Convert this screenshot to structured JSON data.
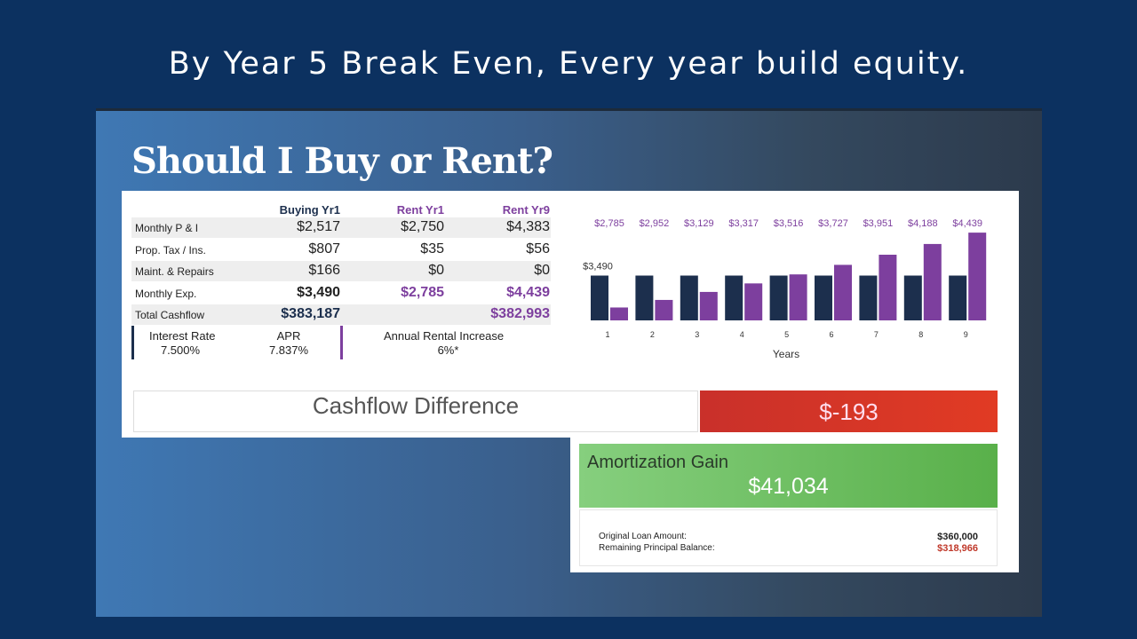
{
  "header": {
    "title": "By Year 5 Break Even, Every year build equity."
  },
  "slide": {
    "title": "Should I Buy or Rent?"
  },
  "table": {
    "columns": [
      "Buying Yr1",
      "Rent Yr1",
      "Rent Yr9"
    ],
    "rows": [
      [
        "Monthly P & I",
        "$2,517",
        "$2,750",
        "$4,383"
      ],
      [
        "Prop. Tax / Ins.",
        "$807",
        "$35",
        "$56"
      ],
      [
        "Maint. & Repairs",
        "$166",
        "$0",
        "$0"
      ],
      [
        "Monthly Exp.",
        "$3,490",
        "$2,785",
        "$4,439"
      ],
      [
        "Total Cashflow",
        "$383,187",
        null,
        "$382,993"
      ]
    ]
  },
  "rates": [
    {
      "label": "Interest Rate",
      "value": "7.500%"
    },
    {
      "label": "APR",
      "value": "7.837%"
    },
    {
      "label": "Annual Rental Increase",
      "value": "6%*"
    }
  ],
  "chart_data": {
    "type": "bar",
    "xlabel": "Years",
    "categories": [
      "1",
      "2",
      "3",
      "4",
      "5",
      "6",
      "7",
      "8",
      "9"
    ],
    "ylim": [
      2500,
      4500
    ],
    "series": [
      {
        "color": "#1c2f4d",
        "values": [
          3490,
          3490,
          3490,
          3490,
          3490,
          3490,
          3490,
          3490,
          3490
        ],
        "value_labels": [
          "$3,490",
          null,
          null,
          null,
          null,
          null,
          null,
          null,
          null
        ]
      },
      {
        "color": "#7d3f9e",
        "values": [
          2785,
          2952,
          3129,
          3317,
          3516,
          3727,
          3951,
          4188,
          4439
        ],
        "value_labels": [
          "$2,785",
          "$2,952",
          "$3,129",
          "$3,317",
          "$3,516",
          "$3,727",
          "$3,951",
          "$4,188",
          "$4,439"
        ]
      }
    ]
  },
  "cashflow": {
    "label": "Cashflow Difference",
    "value": "$-193"
  },
  "amortization": {
    "label": "Amortization Gain",
    "value": "$41,034",
    "details": [
      {
        "label": "Original Loan Amount:",
        "value": "$360,000"
      },
      {
        "label": "Remaining Principal Balance:",
        "value": "$318,966"
      }
    ]
  }
}
